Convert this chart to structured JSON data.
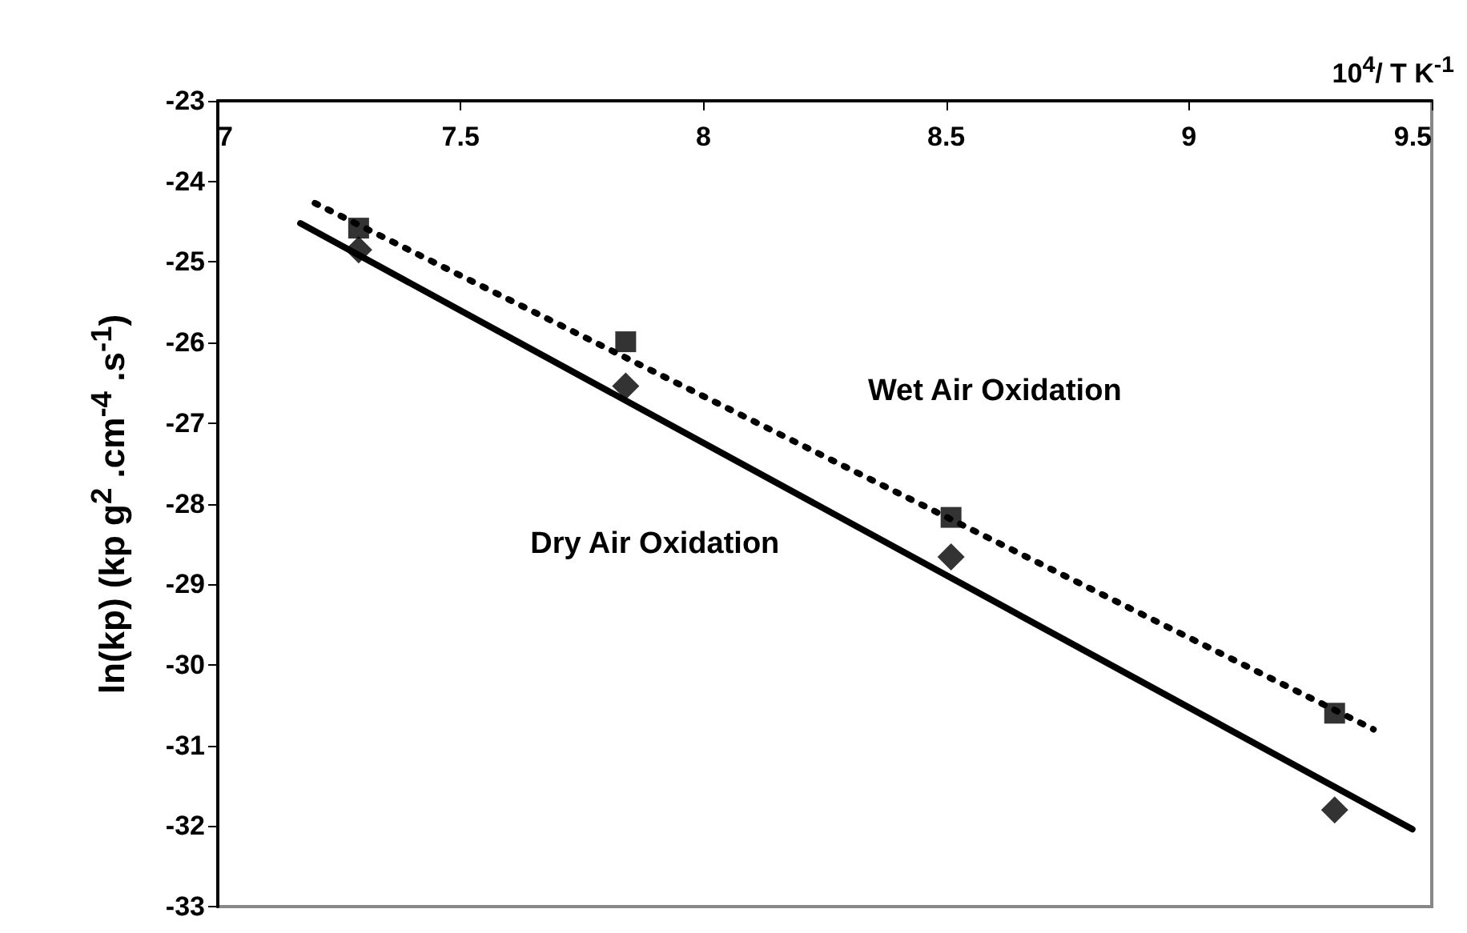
{
  "chart_data": {
    "type": "scatter",
    "xlabel": "10$^{4}$/ T  K$^{-1}$",
    "ylabel": "ln(kp) (kp g$^{2}$ .cm$^{-4}$ .s$^{-1}$)",
    "xlim": [
      7,
      9.5
    ],
    "xticks": [
      7,
      7.5,
      8,
      8.5,
      9,
      9.5
    ],
    "ylim": [
      -33,
      -23
    ],
    "yticks": [
      -33,
      -32,
      -31,
      -30,
      -29,
      -28,
      -27,
      -26,
      -25,
      -24,
      -23
    ],
    "grid": false,
    "series": [
      {
        "marker": "square",
        "color": "#000000",
        "x": [
          7.29,
          7.84,
          8.51,
          9.3
        ],
        "values": [
          -24.58,
          -25.99,
          -28.17,
          -30.6
        ]
      },
      {
        "marker": "diamond",
        "color": "#000000",
        "x": [
          7.29,
          7.84,
          8.51,
          9.3
        ],
        "values": [
          -24.85,
          -26.54,
          -28.66,
          -31.8
        ]
      },
      {
        "type": "line",
        "line_style": "dotted",
        "marker": "none",
        "color": "#000000",
        "x": [
          7.2,
          9.38
        ],
        "values": [
          -24.27,
          -30.8
        ]
      },
      {
        "type": "line",
        "line_style": "solid",
        "marker": "none",
        "color": "#000000",
        "x": [
          7.17,
          9.46
        ],
        "values": [
          -24.52,
          -32.04
        ]
      }
    ],
    "annotations": [
      "Wet Air Oxidation",
      "Dry Air Oxidation"
    ]
  }
}
